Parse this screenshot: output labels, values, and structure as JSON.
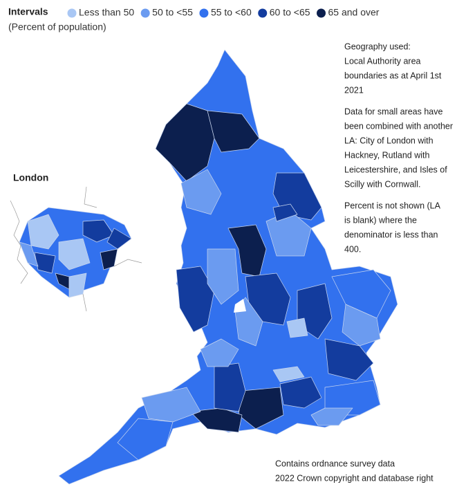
{
  "legend": {
    "title": "Intervals",
    "subtitle": "(Percent of population)",
    "items": [
      {
        "label": "Less than 50",
        "color": "#a9c7f4"
      },
      {
        "label": "50 to <55",
        "color": "#6b9bf0"
      },
      {
        "label": "55 to <60",
        "color": "#3271ee"
      },
      {
        "label": "60 to <65",
        "color": "#133c9e"
      },
      {
        "label": "65 and over",
        "color": "#0c1f4e"
      }
    ]
  },
  "inset": {
    "label": "London"
  },
  "notes": [
    [
      "Geography used:",
      "Local Authority area",
      "boundaries as at April 1st",
      "2021"
    ],
    [
      "Data for small areas have",
      "been combined with another",
      "LA: City of London with",
      "Hackney, Rutland with",
      "Leicestershire, and Isles of",
      "Scilly with Cornwall."
    ],
    [
      "Percent is not shown (LA",
      "is blank) where the",
      "denominator is less than",
      "400."
    ]
  ],
  "footer": [
    "Contains ordnance survey data",
    "2022 Crown copyright and database right"
  ]
}
